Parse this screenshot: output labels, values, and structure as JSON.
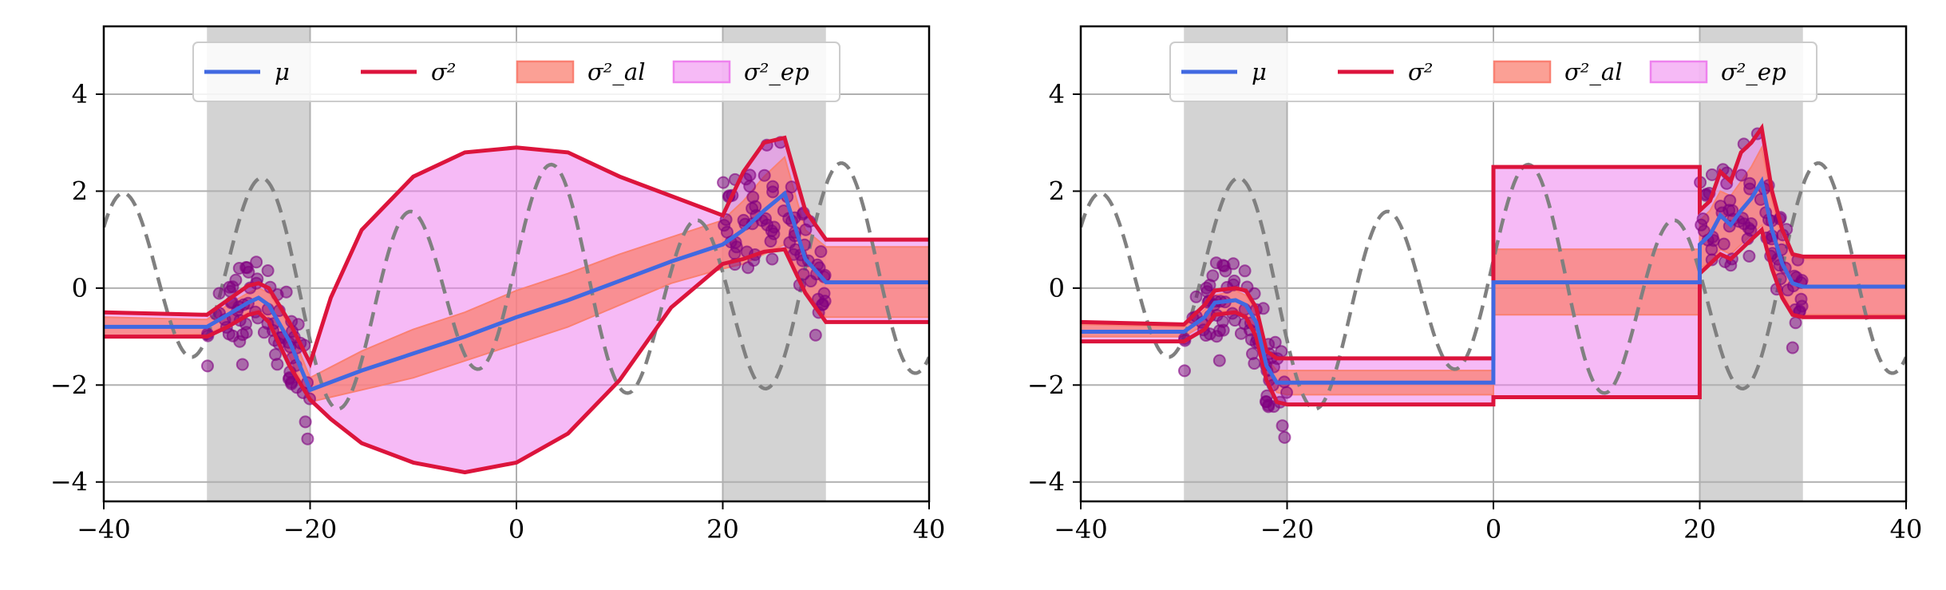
{
  "chart_data": [
    {
      "type": "line",
      "panel": "left",
      "xlim": [
        -40,
        40
      ],
      "ylim": [
        -4.4,
        5.4
      ],
      "x_ticks": [
        "−40",
        "−20",
        "0",
        "20",
        "40"
      ],
      "y_ticks": [
        "−4",
        "−2",
        "0",
        "2",
        "4"
      ],
      "grid": true,
      "legend": {
        "placement": "top-center",
        "entries": [
          {
            "label": "μ",
            "kind": "line",
            "color": "#4169e1"
          },
          {
            "label": "σ²",
            "kind": "line",
            "color": "#dc143c"
          },
          {
            "label": "σ²_al",
            "kind": "patch",
            "color": "#fa8072"
          },
          {
            "label": "σ²_ep",
            "kind": "patch",
            "color": "#ee82ee"
          }
        ]
      },
      "training_regions": [
        [
          -30,
          -20
        ],
        [
          20,
          30
        ]
      ],
      "colors": {
        "mean": "#4169e1",
        "total_variance": "#dc143c",
        "aleatoric": "#fa8072",
        "epistemic": "#ee82ee",
        "ground_truth": "#808080",
        "points": "#800080",
        "region": "#d3d3d3"
      },
      "series": [
        {
          "name": "μ",
          "x": [
            -40,
            -30,
            -28,
            -26,
            -25,
            -24,
            -22,
            -20,
            -15,
            -10,
            -5,
            0,
            5,
            10,
            15,
            20,
            22,
            24,
            26,
            28,
            30,
            40
          ],
          "values": [
            -0.8,
            -0.8,
            -0.55,
            -0.3,
            -0.2,
            -0.35,
            -1.1,
            -2.1,
            -1.7,
            -1.35,
            -1.0,
            -0.6,
            -0.25,
            0.15,
            0.55,
            0.9,
            1.2,
            1.6,
            1.95,
            0.6,
            0.12,
            0.12
          ]
        },
        {
          "name": "σ²_al",
          "x": [
            -40,
            -30,
            -28,
            -26,
            -25,
            -24,
            -22,
            -20,
            -15,
            -10,
            -5,
            0,
            5,
            10,
            15,
            20,
            22,
            24,
            26,
            28,
            30,
            40
          ],
          "lower": [
            -1.0,
            -0.95,
            -0.75,
            -0.5,
            -0.45,
            -0.6,
            -1.4,
            -2.35,
            -2.1,
            -1.85,
            -1.5,
            -1.15,
            -0.8,
            -0.35,
            0.1,
            0.4,
            0.5,
            0.7,
            0.9,
            -0.05,
            -0.6,
            -0.6
          ],
          "upper": [
            -0.6,
            -0.65,
            -0.35,
            -0.1,
            0.0,
            -0.1,
            -0.8,
            -1.85,
            -1.3,
            -0.85,
            -0.5,
            -0.05,
            0.3,
            0.7,
            1.05,
            1.4,
            1.8,
            2.3,
            2.7,
            1.2,
            0.85,
            0.85
          ]
        },
        {
          "name": "σ²",
          "x": [
            -40,
            -30,
            -28,
            -26,
            -25,
            -24,
            -22,
            -20,
            -18,
            -15,
            -10,
            -5,
            0,
            5,
            10,
            15,
            20,
            22,
            24,
            26,
            28,
            30,
            40
          ],
          "lower": [
            -1.0,
            -1.0,
            -0.8,
            -0.55,
            -0.5,
            -0.7,
            -1.6,
            -2.3,
            -2.7,
            -3.2,
            -3.6,
            -3.8,
            -3.6,
            -3.0,
            -1.9,
            -0.4,
            0.5,
            0.6,
            0.75,
            0.8,
            -0.1,
            -0.7,
            -0.7
          ],
          "upper": [
            -0.5,
            -0.55,
            -0.25,
            0.05,
            0.1,
            0.0,
            -0.7,
            -1.55,
            -0.2,
            1.2,
            2.3,
            2.8,
            2.9,
            2.8,
            2.3,
            1.9,
            1.5,
            2.4,
            3.0,
            3.1,
            1.6,
            1.0,
            1.0
          ]
        }
      ]
    },
    {
      "type": "line",
      "panel": "right",
      "xlim": [
        -40,
        40
      ],
      "ylim": [
        -4.4,
        5.4
      ],
      "x_ticks": [
        "−40",
        "−20",
        "0",
        "20",
        "40"
      ],
      "y_ticks": [
        "−4",
        "−2",
        "0",
        "2",
        "4"
      ],
      "grid": true,
      "legend": {
        "placement": "top-center",
        "entries": [
          {
            "label": "μ",
            "kind": "line",
            "color": "#4169e1"
          },
          {
            "label": "σ²",
            "kind": "line",
            "color": "#dc143c"
          },
          {
            "label": "σ²_al",
            "kind": "patch",
            "color": "#fa8072"
          },
          {
            "label": "σ²_ep",
            "kind": "patch",
            "color": "#ee82ee"
          }
        ]
      },
      "training_regions": [
        [
          -30,
          -20
        ],
        [
          20,
          30
        ]
      ],
      "colors": {
        "mean": "#4169e1",
        "total_variance": "#dc143c",
        "aleatoric": "#fa8072",
        "epistemic": "#ee82ee",
        "ground_truth": "#808080",
        "points": "#800080",
        "region": "#d3d3d3"
      },
      "series": [
        {
          "name": "μ",
          "x": [
            -40,
            -30,
            -28,
            -27,
            -25,
            -24,
            -23,
            -22,
            -21,
            -20,
            -0.01,
            0,
            19.99,
            20,
            21,
            22,
            23,
            24,
            25,
            26,
            27,
            28,
            29,
            30,
            40
          ],
          "values": [
            -0.9,
            -0.9,
            -0.6,
            -0.3,
            -0.25,
            -0.35,
            -0.7,
            -1.6,
            -1.95,
            -1.95,
            -1.95,
            0.12,
            0.12,
            0.9,
            1.1,
            1.5,
            1.3,
            1.6,
            1.85,
            2.2,
            1.2,
            0.5,
            0.1,
            0.03,
            0.03
          ]
        },
        {
          "name": "σ²_al",
          "x": [
            -40,
            -30,
            -28,
            -27,
            -25,
            -24,
            -23,
            -22,
            -21,
            -20,
            -0.01,
            0,
            19.99,
            20,
            21,
            22,
            23,
            24,
            25,
            26,
            27,
            28,
            29,
            30,
            40
          ],
          "lower": [
            -1.0,
            -1.0,
            -0.75,
            -0.5,
            -0.45,
            -0.55,
            -0.9,
            -1.75,
            -2.15,
            -2.2,
            -2.2,
            -0.55,
            -0.55,
            0.4,
            0.55,
            0.8,
            0.7,
            0.9,
            1.1,
            1.3,
            0.5,
            -0.1,
            -0.5,
            -0.55,
            -0.55
          ],
          "upper": [
            -0.75,
            -0.8,
            -0.45,
            -0.15,
            -0.05,
            -0.15,
            -0.5,
            -1.45,
            -1.7,
            -1.7,
            -1.7,
            0.8,
            0.8,
            1.4,
            1.6,
            2.0,
            1.9,
            2.2,
            2.5,
            2.9,
            1.8,
            1.0,
            0.65,
            0.6,
            0.6
          ]
        },
        {
          "name": "σ²",
          "x": [
            -40,
            -30,
            -28,
            -27,
            -25,
            -24,
            -23,
            -22,
            -21,
            -20,
            -0.01,
            0,
            19.99,
            20,
            21,
            22,
            23,
            24,
            25,
            26,
            27,
            28,
            29,
            30,
            40
          ],
          "lower": [
            -1.1,
            -1.1,
            -0.85,
            -0.55,
            -0.5,
            -0.6,
            -1.0,
            -1.9,
            -2.35,
            -2.4,
            -2.4,
            -2.25,
            -2.25,
            0.3,
            0.5,
            0.7,
            0.6,
            0.8,
            1.0,
            1.2,
            0.4,
            -0.2,
            -0.55,
            -0.6,
            -0.6
          ],
          "upper": [
            -0.7,
            -0.75,
            -0.35,
            -0.05,
            0.0,
            -0.05,
            -0.4,
            -1.3,
            -1.45,
            -1.45,
            -1.45,
            2.5,
            2.5,
            1.6,
            1.8,
            2.4,
            2.2,
            2.8,
            3.0,
            3.3,
            2.0,
            1.2,
            0.7,
            0.65,
            0.65
          ]
        }
      ]
    }
  ]
}
